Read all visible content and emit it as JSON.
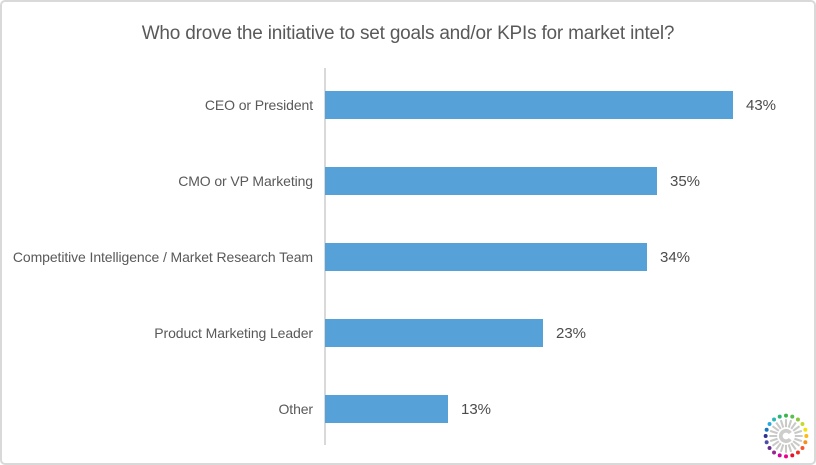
{
  "title": "Who drove the initiative to set goals and/or KPIs for market intel?",
  "chart_data": {
    "type": "bar",
    "orientation": "horizontal",
    "title": "Who drove the initiative to set goals and/or KPIs for market intel?",
    "categories": [
      "CEO or President",
      "CMO or VP Marketing",
      "Competitive Intelligence / Market Research Team",
      "Product Marketing Leader",
      "Other"
    ],
    "values": [
      43,
      35,
      34,
      23,
      13
    ],
    "value_labels": [
      "43%",
      "35%",
      "34%",
      "23%",
      "13%"
    ],
    "value_suffix": "%",
    "xlabel": "",
    "ylabel": "",
    "xlim": [
      0,
      50
    ],
    "grid": false,
    "legend": null,
    "bar_color": "#56A2D8",
    "category_label_color": "#595959",
    "value_label_color": "#4C4C4C",
    "axis_line_color": "#D9D9D9",
    "title_color": "#595959"
  },
  "logo": {
    "name": "starburst-logo",
    "spoke_color": "#C9C9C7",
    "center_glyph_color": "#CDCDCB",
    "dot_colors": [
      "#3CB54A",
      "#5BBE4E",
      "#8CC63F",
      "#C4D92E",
      "#F2E30D",
      "#FDB913",
      "#F78F1E",
      "#F2572D",
      "#EE2E24",
      "#E8112D",
      "#EC008C",
      "#D4009F",
      "#92278F",
      "#662D91",
      "#4B4DA8",
      "#2E3192",
      "#1B75BC",
      "#27AAE1",
      "#2BB7B3",
      "#2BB673"
    ]
  }
}
